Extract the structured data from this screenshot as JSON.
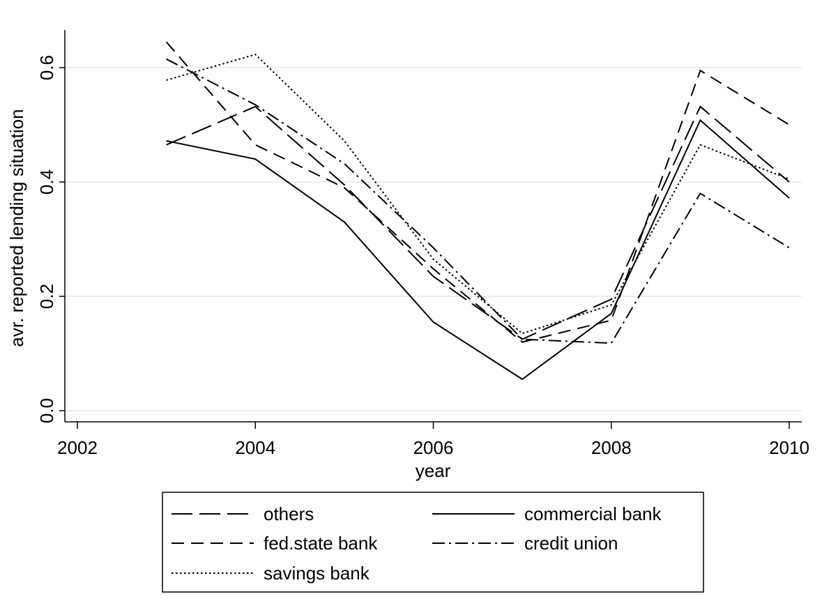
{
  "chart_data": {
    "type": "line",
    "title": "",
    "xlabel": "year",
    "ylabel": "avr. reported lending situation",
    "xlim": [
      2002,
      2010
    ],
    "ylim": [
      0,
      0.6
    ],
    "xticks": [
      "2002",
      "2004",
      "2006",
      "2008",
      "2010"
    ],
    "yticks": [
      "0.0",
      "0.2",
      "0.4",
      "0.6"
    ],
    "grid": true,
    "legend_position": "bottom",
    "x": [
      2003,
      2004,
      2005,
      2006,
      2007,
      2008,
      2009,
      2010
    ],
    "series": [
      {
        "name": "others",
        "style": "longdash",
        "values": [
          0.465,
          0.532,
          0.395,
          0.235,
          0.125,
          0.195,
          0.532,
          0.4
        ]
      },
      {
        "name": "commercial bank",
        "style": "solid",
        "values": [
          0.472,
          0.44,
          0.33,
          0.155,
          0.055,
          0.17,
          0.508,
          0.372
        ]
      },
      {
        "name": "fed.state bank",
        "style": "dash",
        "values": [
          0.645,
          0.465,
          0.39,
          0.248,
          0.12,
          0.158,
          0.595,
          0.5
        ]
      },
      {
        "name": "credit union",
        "style": "dashdot",
        "values": [
          0.615,
          0.535,
          0.432,
          0.285,
          0.125,
          0.118,
          0.38,
          0.285
        ]
      },
      {
        "name": "savings bank",
        "style": "dot",
        "values": [
          0.578,
          0.623,
          0.472,
          0.265,
          0.135,
          0.185,
          0.465,
          0.405
        ]
      }
    ]
  }
}
